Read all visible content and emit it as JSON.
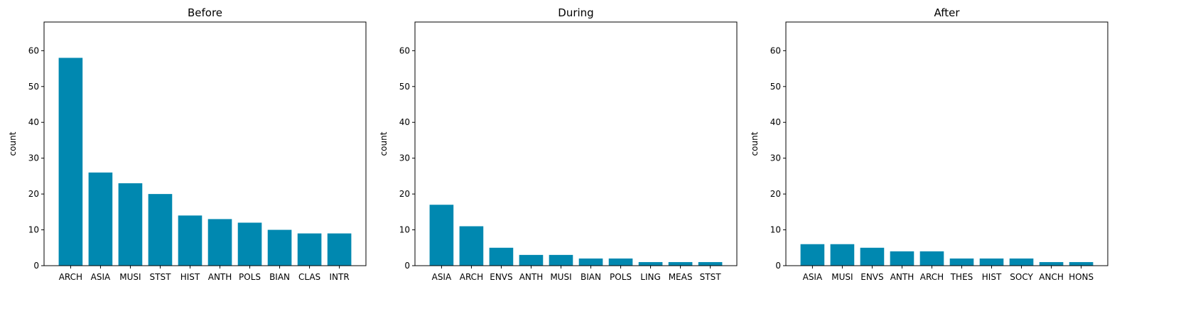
{
  "chart_data": [
    {
      "type": "bar",
      "title": "Before",
      "xlabel": "",
      "ylabel": "count",
      "ylim": [
        0,
        68
      ],
      "yticks": [
        0,
        10,
        20,
        30,
        40,
        50,
        60
      ],
      "categories": [
        "ARCH",
        "ASIA",
        "MUSI",
        "STST",
        "HIST",
        "ANTH",
        "POLS",
        "BIAN",
        "CLAS",
        "INTR"
      ],
      "values": [
        58,
        26,
        23,
        20,
        14,
        13,
        12,
        10,
        9,
        9
      ],
      "color": "#0088b0",
      "grid": false
    },
    {
      "type": "bar",
      "title": "During",
      "xlabel": "",
      "ylabel": "count",
      "ylim": [
        0,
        68
      ],
      "yticks": [
        0,
        10,
        20,
        30,
        40,
        50,
        60
      ],
      "categories": [
        "ASIA",
        "ARCH",
        "ENVS",
        "ANTH",
        "MUSI",
        "BIAN",
        "POLS",
        "LING",
        "MEAS",
        "STST"
      ],
      "values": [
        17,
        11,
        5,
        3,
        3,
        2,
        2,
        1,
        1,
        1
      ],
      "color": "#0088b0",
      "grid": false
    },
    {
      "type": "bar",
      "title": "After",
      "xlabel": "",
      "ylabel": "count",
      "ylim": [
        0,
        68
      ],
      "yticks": [
        0,
        10,
        20,
        30,
        40,
        50,
        60
      ],
      "categories": [
        "ASIA",
        "MUSI",
        "ENVS",
        "ANTH",
        "ARCH",
        "THES",
        "HIST",
        "SOCY",
        "ANCH",
        "HONS"
      ],
      "values": [
        6,
        6,
        5,
        4,
        4,
        2,
        2,
        2,
        1,
        1
      ],
      "color": "#0088b0",
      "grid": false
    }
  ]
}
